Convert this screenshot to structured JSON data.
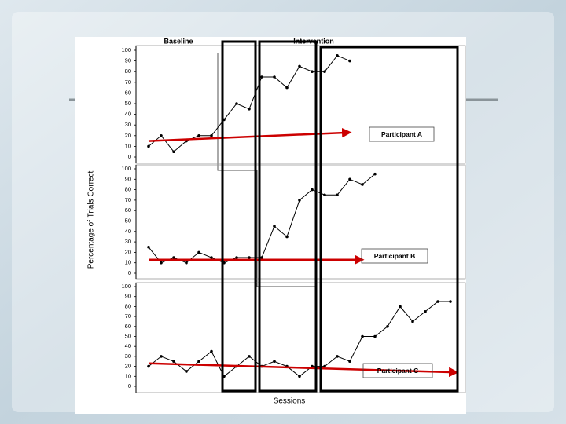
{
  "phases": [
    "Baseline",
    "Intervention"
  ],
  "y_label": "Percentage of Trials Correct",
  "x_label": "Sessions",
  "chart_data": [
    {
      "type": "line",
      "title": "Participant A",
      "color": "#000000",
      "x": [
        1,
        2,
        3,
        4,
        5,
        6,
        7,
        8,
        9,
        10,
        11,
        12,
        13,
        14,
        15,
        16,
        17
      ],
      "values": [
        10,
        20,
        5,
        15,
        20,
        20,
        35,
        50,
        45,
        75,
        75,
        65,
        85,
        80,
        80,
        95,
        90
      ],
      "xlim": [
        0,
        26
      ],
      "ylim": [
        0,
        100
      ],
      "yticks": [
        0,
        10,
        20,
        30,
        40,
        50,
        60,
        70,
        80,
        90,
        100
      ],
      "trend": {
        "color": "#cc0000",
        "x": [
          1,
          17
        ],
        "values": [
          15,
          23
        ]
      }
    },
    {
      "type": "line",
      "title": "Participant B",
      "color": "#000000",
      "x": [
        1,
        2,
        3,
        4,
        5,
        6,
        7,
        8,
        9,
        10,
        11,
        12,
        13,
        14,
        15,
        16,
        17,
        18,
        19
      ],
      "values": [
        25,
        10,
        15,
        10,
        20,
        15,
        10,
        15,
        15,
        15,
        45,
        35,
        70,
        80,
        75,
        75,
        90,
        85,
        95
      ],
      "xlim": [
        0,
        26
      ],
      "ylim": [
        0,
        100
      ],
      "yticks": [
        0,
        10,
        20,
        30,
        40,
        50,
        60,
        70,
        80,
        90,
        100
      ],
      "trend": {
        "color": "#cc0000",
        "x": [
          1,
          18
        ],
        "values": [
          13,
          13
        ]
      }
    },
    {
      "type": "line",
      "title": "Participant C",
      "color": "#000000",
      "x": [
        1,
        2,
        3,
        4,
        5,
        6,
        7,
        8,
        9,
        10,
        11,
        12,
        13,
        14,
        15,
        16,
        17,
        18,
        19,
        20,
        21,
        22,
        23,
        24,
        25
      ],
      "values": [
        20,
        30,
        25,
        15,
        25,
        35,
        10,
        20,
        30,
        20,
        25,
        20,
        10,
        20,
        20,
        30,
        25,
        50,
        50,
        60,
        80,
        65,
        75,
        85,
        85
      ],
      "xlim": [
        0,
        26
      ],
      "ylim": [
        0,
        100
      ],
      "yticks": [
        0,
        10,
        20,
        30,
        40,
        50,
        60,
        70,
        80,
        90,
        100
      ],
      "trend": {
        "color": "#cc0000",
        "x": [
          1,
          25.5
        ],
        "values": [
          23,
          14
        ]
      }
    }
  ]
}
